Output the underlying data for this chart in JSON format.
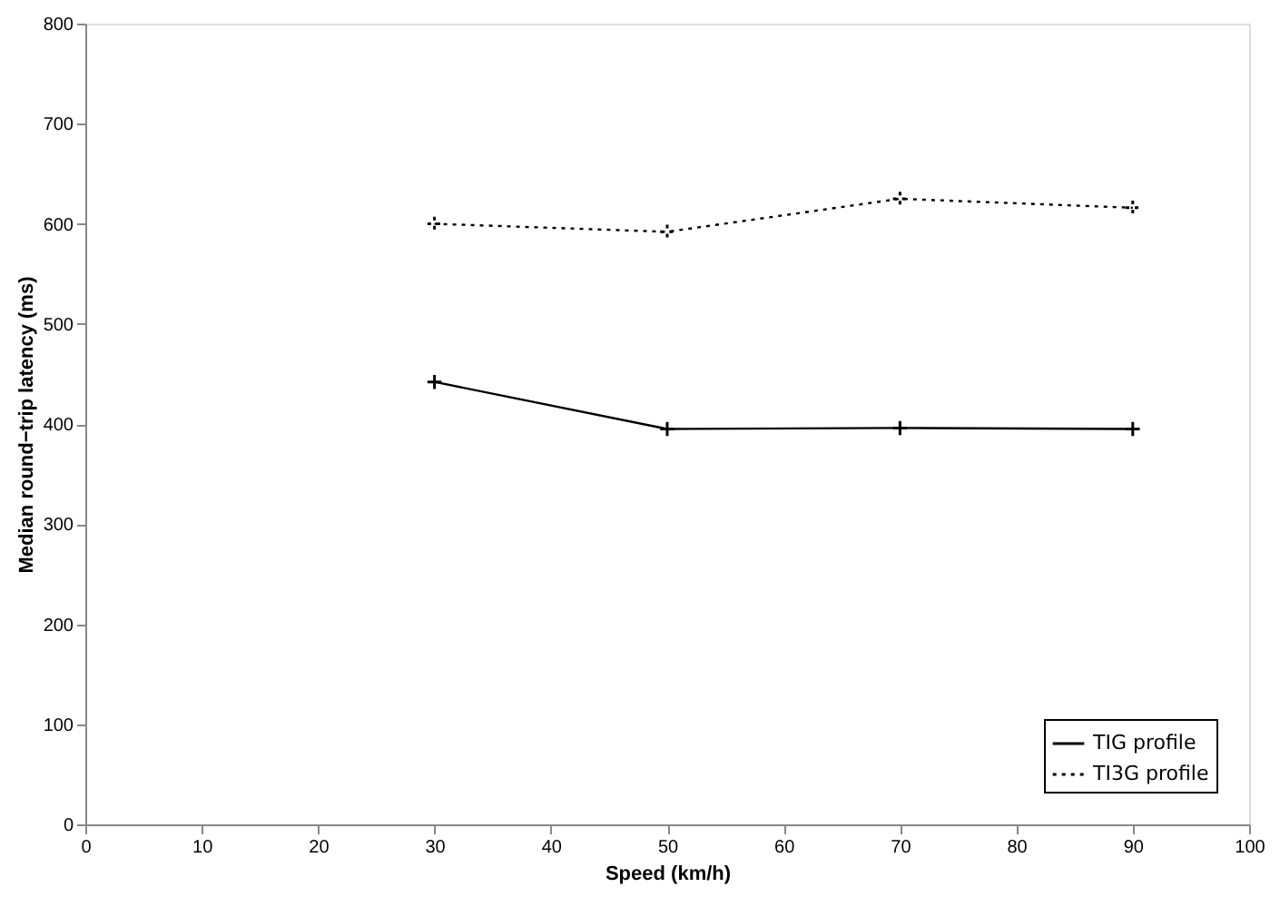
{
  "chart_data": {
    "type": "line",
    "xlabel": "Speed (km/h)",
    "ylabel": "Median round−trip latency (ms)",
    "x": [
      30,
      50,
      70,
      90
    ],
    "series": [
      {
        "name": "TIG profile",
        "color": "#000000",
        "values": [
          442,
          395,
          396,
          395
        ],
        "line_style": "solid"
      },
      {
        "name": "TI3G profile",
        "color": "#000000",
        "values": [
          600,
          592,
          625,
          616
        ],
        "line_style": "dotted"
      }
    ],
    "xlim": [
      0,
      100
    ],
    "xticks": [
      0,
      10,
      20,
      30,
      40,
      50,
      60,
      70,
      80,
      90,
      100
    ],
    "ylim": [
      0,
      800
    ],
    "yticks": [
      0,
      100,
      200,
      300,
      400,
      500,
      600,
      700,
      800
    ],
    "marker": "cross",
    "legend": "bottom right",
    "grid": false
  }
}
